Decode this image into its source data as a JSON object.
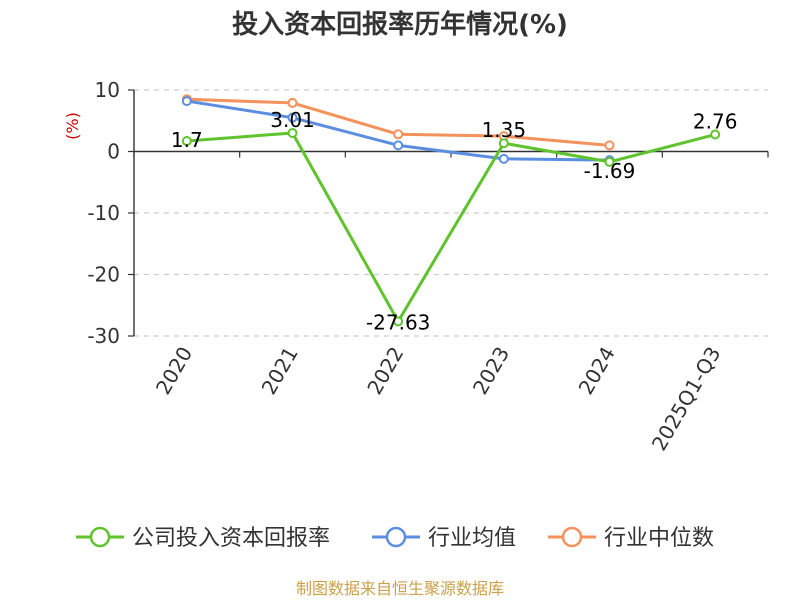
{
  "chart_data": {
    "type": "line",
    "title": "投入资本回报率历年情况(%)",
    "ylabel": "(%)",
    "ylim": [
      -30,
      10
    ],
    "yticks": [
      "10",
      "0",
      "-10",
      "-20",
      "-30"
    ],
    "ytick_values": [
      10,
      0,
      -10,
      -20,
      -30
    ],
    "categories": [
      "2020",
      "2021",
      "2022",
      "2023",
      "2024",
      "2025Q1-Q3"
    ],
    "grid": true,
    "legend_position": "bottom",
    "series": [
      {
        "name": "公司投入资本回报率",
        "color": "#5fc32d",
        "values": [
          1.7,
          3.01,
          -27.63,
          1.35,
          -1.69,
          2.76
        ],
        "labels": [
          "1.7",
          "3.01",
          "-27.63",
          "1.35",
          "-1.69",
          "2.76"
        ]
      },
      {
        "name": "行业均值",
        "color": "#5b8ee0",
        "values": [
          8.2,
          5.5,
          1.0,
          -1.2,
          -1.4,
          null
        ]
      },
      {
        "name": "行业中位数",
        "color": "#f5915a",
        "values": [
          8.5,
          7.9,
          2.8,
          2.5,
          1.0,
          null
        ]
      }
    ]
  },
  "footer": {
    "source": "制图数据来自恒生聚源数据库"
  }
}
